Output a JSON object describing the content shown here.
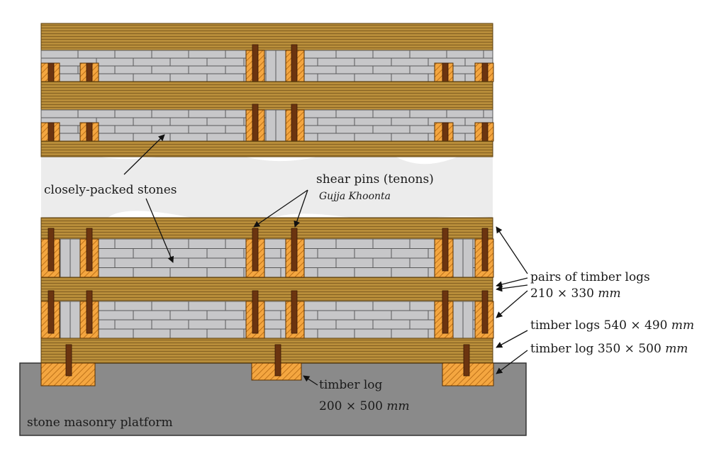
{
  "labels": {
    "stones": "closely-packed stones",
    "shear_pins": "shear pins (tenons)",
    "gujja": "Gujja Khoonta",
    "pairs_line1": "pairs of timber logs",
    "pairs_dims": "210 × 330",
    "logs540": "timber logs 540 × 490",
    "log350": "timber log 350 × 500",
    "log200_line1": "timber log",
    "log200_dims": "200 × 500",
    "mm": "mm",
    "platform": "stone masonry platform"
  },
  "colors": {
    "timber": "#b88d3a",
    "timber_dark": "#6e4a12",
    "block_orange": "#f2a23a",
    "pin": "#6b3410",
    "stone": "#c7c7c9",
    "stone_line": "#5a5a5a",
    "platform": "#8a8a8a",
    "gap": "#ececec"
  }
}
